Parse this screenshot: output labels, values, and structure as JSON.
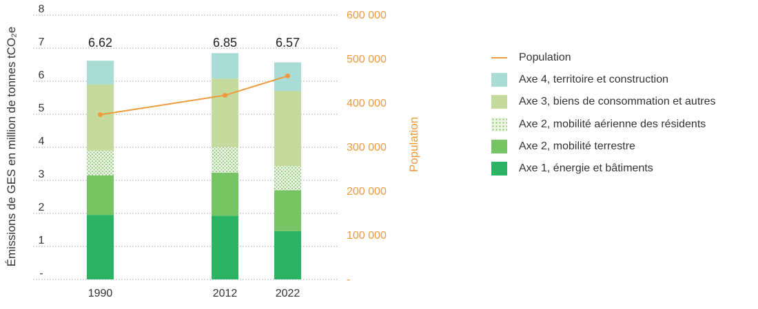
{
  "chart_data": {
    "type": "bar",
    "subtype": "stacked-bar-with-line",
    "categories": [
      "1990",
      "2012",
      "2022"
    ],
    "totals": [
      "6.62",
      "6.85",
      "6.57"
    ],
    "series": [
      {
        "name": "Axe 1, énergie et bâtiments",
        "values": [
          1.95,
          1.93,
          1.46
        ],
        "color": "#2bb464",
        "pattern": "solid"
      },
      {
        "name": "Axe 2, mobilité terrestre",
        "values": [
          1.2,
          1.3,
          1.24
        ],
        "color": "#77c465",
        "pattern": "solid"
      },
      {
        "name": "Axe 2, mobilité aérienne des résidents",
        "values": [
          0.75,
          0.78,
          0.73
        ],
        "color": "#9fd08c",
        "pattern": "dots"
      },
      {
        "name": "Axe 3, biens de consommation et autres",
        "values": [
          2.0,
          2.07,
          2.27
        ],
        "color": "#c5da9d",
        "pattern": "solid"
      },
      {
        "name": "Axe 4, territoire et construction",
        "values": [
          0.72,
          0.77,
          0.87
        ],
        "color": "#a9dcd5",
        "pattern": "solid"
      }
    ],
    "line_series": {
      "name": "Population",
      "values": [
        374000,
        418000,
        462000
      ],
      "color": "#ee9a3b"
    },
    "ylabel": "Émissions de GES en million de tonnes tCO₂e",
    "ylim": [
      0,
      8
    ],
    "yticks": [
      "-",
      "1",
      "2",
      "3",
      "4",
      "5",
      "6",
      "7",
      "8"
    ],
    "y2label": "Population",
    "y2lim": [
      0,
      600000
    ],
    "y2ticks": [
      "-",
      "100 000",
      "200 000",
      "300 000",
      "400 000",
      "500 000",
      "600 000"
    ],
    "legend_position": "right",
    "legend": [
      {
        "label": "Population",
        "kind": "line",
        "color": "#ee9a3b"
      },
      {
        "label": "Axe 4, territoire et construction",
        "kind": "solid",
        "color": "#a9dcd5"
      },
      {
        "label": "Axe 3, biens de consommation et autres",
        "kind": "solid",
        "color": "#c5da9d"
      },
      {
        "label": "Axe 2, mobilité aérienne des résidents",
        "kind": "dots",
        "color": "#9fd08c"
      },
      {
        "label": "Axe 2, mobilité terrestre",
        "kind": "solid",
        "color": "#77c465"
      },
      {
        "label": "Axe 1, énergie et bâtiments",
        "kind": "solid",
        "color": "#2bb464"
      }
    ],
    "grid": true
  }
}
